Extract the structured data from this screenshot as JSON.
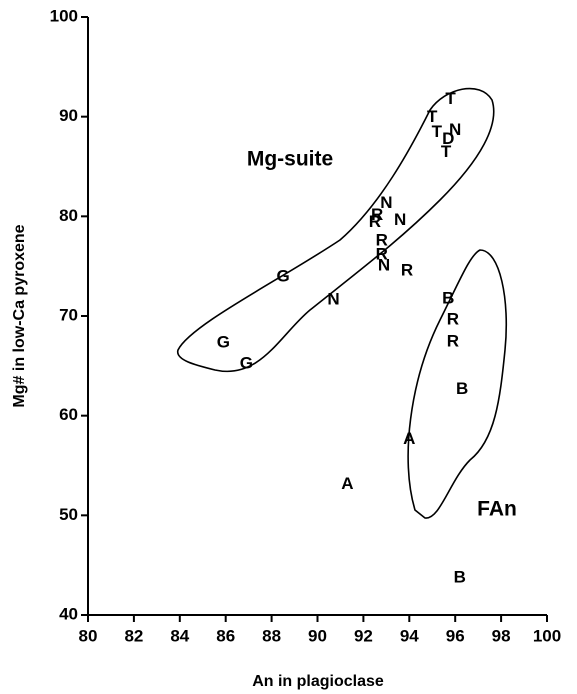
{
  "chart_data": {
    "type": "scatter",
    "xlabel": "An in plagioclase",
    "ylabel": "Mg# in low-Ca pyroxene",
    "xlim": [
      80,
      100
    ],
    "xticks": [
      80,
      82,
      84,
      86,
      88,
      90,
      92,
      94,
      96,
      98,
      100
    ],
    "ylim": [
      40,
      100
    ],
    "yticks": [
      40,
      50,
      60,
      70,
      80,
      90,
      100
    ],
    "annotations": [
      "Mg-suite",
      "FAn"
    ],
    "series": [
      {
        "color": "#000000",
        "labels": [
          "G",
          "G",
          "G",
          "N",
          "A",
          "N",
          "R",
          "R",
          "N",
          "R",
          "R",
          "N",
          "R",
          "T",
          "T",
          "T",
          "N",
          "D",
          "T",
          "B",
          "R",
          "R",
          "B",
          "A",
          "B"
        ],
        "x": [
          85.9,
          86.9,
          88.5,
          90.7,
          91.3,
          93.0,
          92.5,
          92.6,
          93.6,
          92.8,
          92.8,
          92.9,
          93.9,
          95.0,
          95.2,
          95.8,
          96.0,
          95.7,
          95.6,
          95.7,
          95.9,
          95.9,
          96.3,
          94.0,
          96.2
        ],
        "values": [
          67.3,
          65.2,
          73.9,
          71.6,
          53.1,
          81.3,
          79.4,
          80.1,
          79.6,
          77.5,
          76.1,
          75.0,
          74.5,
          89.9,
          88.4,
          91.7,
          88.6,
          87.7,
          86.4,
          71.7,
          69.6,
          67.4,
          62.6,
          57.6,
          43.7
        ]
      }
    ]
  }
}
